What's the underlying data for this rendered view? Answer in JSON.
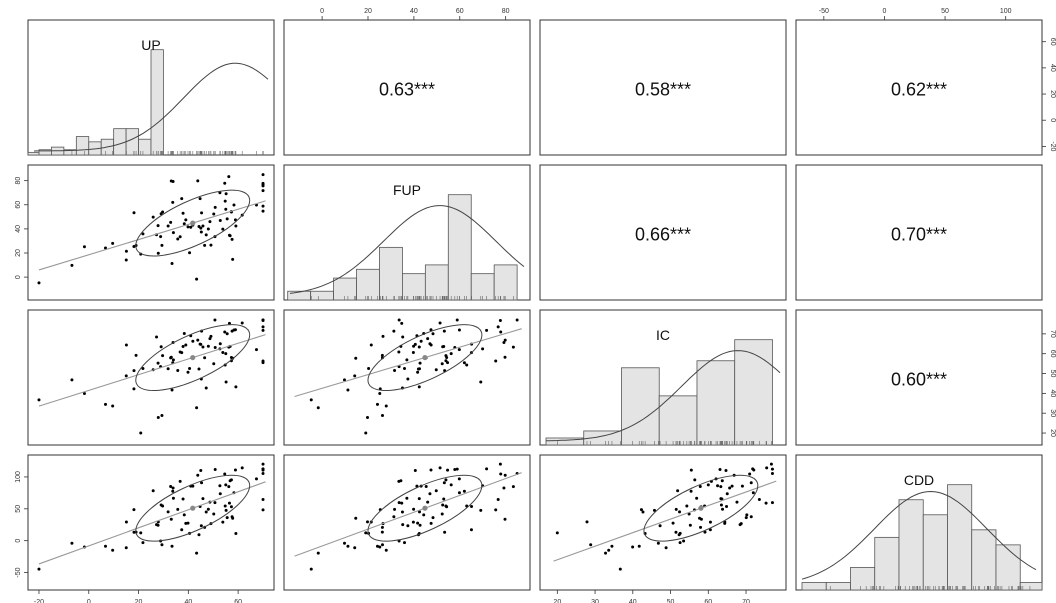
{
  "chart_data": {
    "type": "scatter",
    "subtype": "pairs-panel",
    "variables": [
      "UP",
      "FUP",
      "IC",
      "CDD"
    ],
    "correlations": [
      {
        "row": 0,
        "col": 1,
        "label": "0.63***",
        "value": 0.63
      },
      {
        "row": 0,
        "col": 2,
        "label": "0.58***",
        "value": 0.58
      },
      {
        "row": 0,
        "col": 3,
        "label": "0.62***",
        "value": 0.62
      },
      {
        "row": 1,
        "col": 2,
        "label": "0.66***",
        "value": 0.66
      },
      {
        "row": 1,
        "col": 3,
        "label": "0.70***",
        "value": 0.7
      },
      {
        "row": 2,
        "col": 3,
        "label": "0.60***",
        "value": 0.6
      }
    ],
    "axes": {
      "UP": {
        "range": [
          -22,
          72
        ],
        "ticks": [
          "-20",
          "0",
          "20",
          "40",
          "60"
        ]
      },
      "FUP": {
        "range": [
          -14,
          88
        ],
        "ticks": [
          "0",
          "20",
          "40",
          "60",
          "80"
        ]
      },
      "IC": {
        "range": [
          17,
          79
        ],
        "ticks": [
          "20",
          "30",
          "40",
          "50",
          "60",
          "70"
        ]
      },
      "CDD": {
        "range": [
          -68,
          125
        ],
        "ticks": [
          "-50",
          "0",
          "50",
          "100"
        ]
      }
    },
    "histograms": {
      "UP": {
        "bin_width": 5,
        "start": -25,
        "counts": [
          1,
          2,
          3,
          2,
          7,
          5,
          6,
          10,
          10,
          6,
          40
        ],
        "ymax": 40
      },
      "FUP": {
        "bin_width": 10,
        "start": -15,
        "counts": [
          2,
          2,
          5,
          7,
          12,
          6,
          8,
          24,
          6,
          8
        ],
        "ymax": 24
      },
      "IC": {
        "bin_width": 10,
        "start": 17,
        "counts": [
          1,
          2,
          11,
          7,
          12,
          15
        ],
        "ymax": 15
      },
      "CDD": {
        "bin_width": 20,
        "start": -68,
        "counts": [
          1,
          1,
          3,
          7,
          12,
          10,
          14,
          8,
          6,
          1
        ],
        "ymax": 14
      }
    },
    "grid": false,
    "legend": "none"
  }
}
